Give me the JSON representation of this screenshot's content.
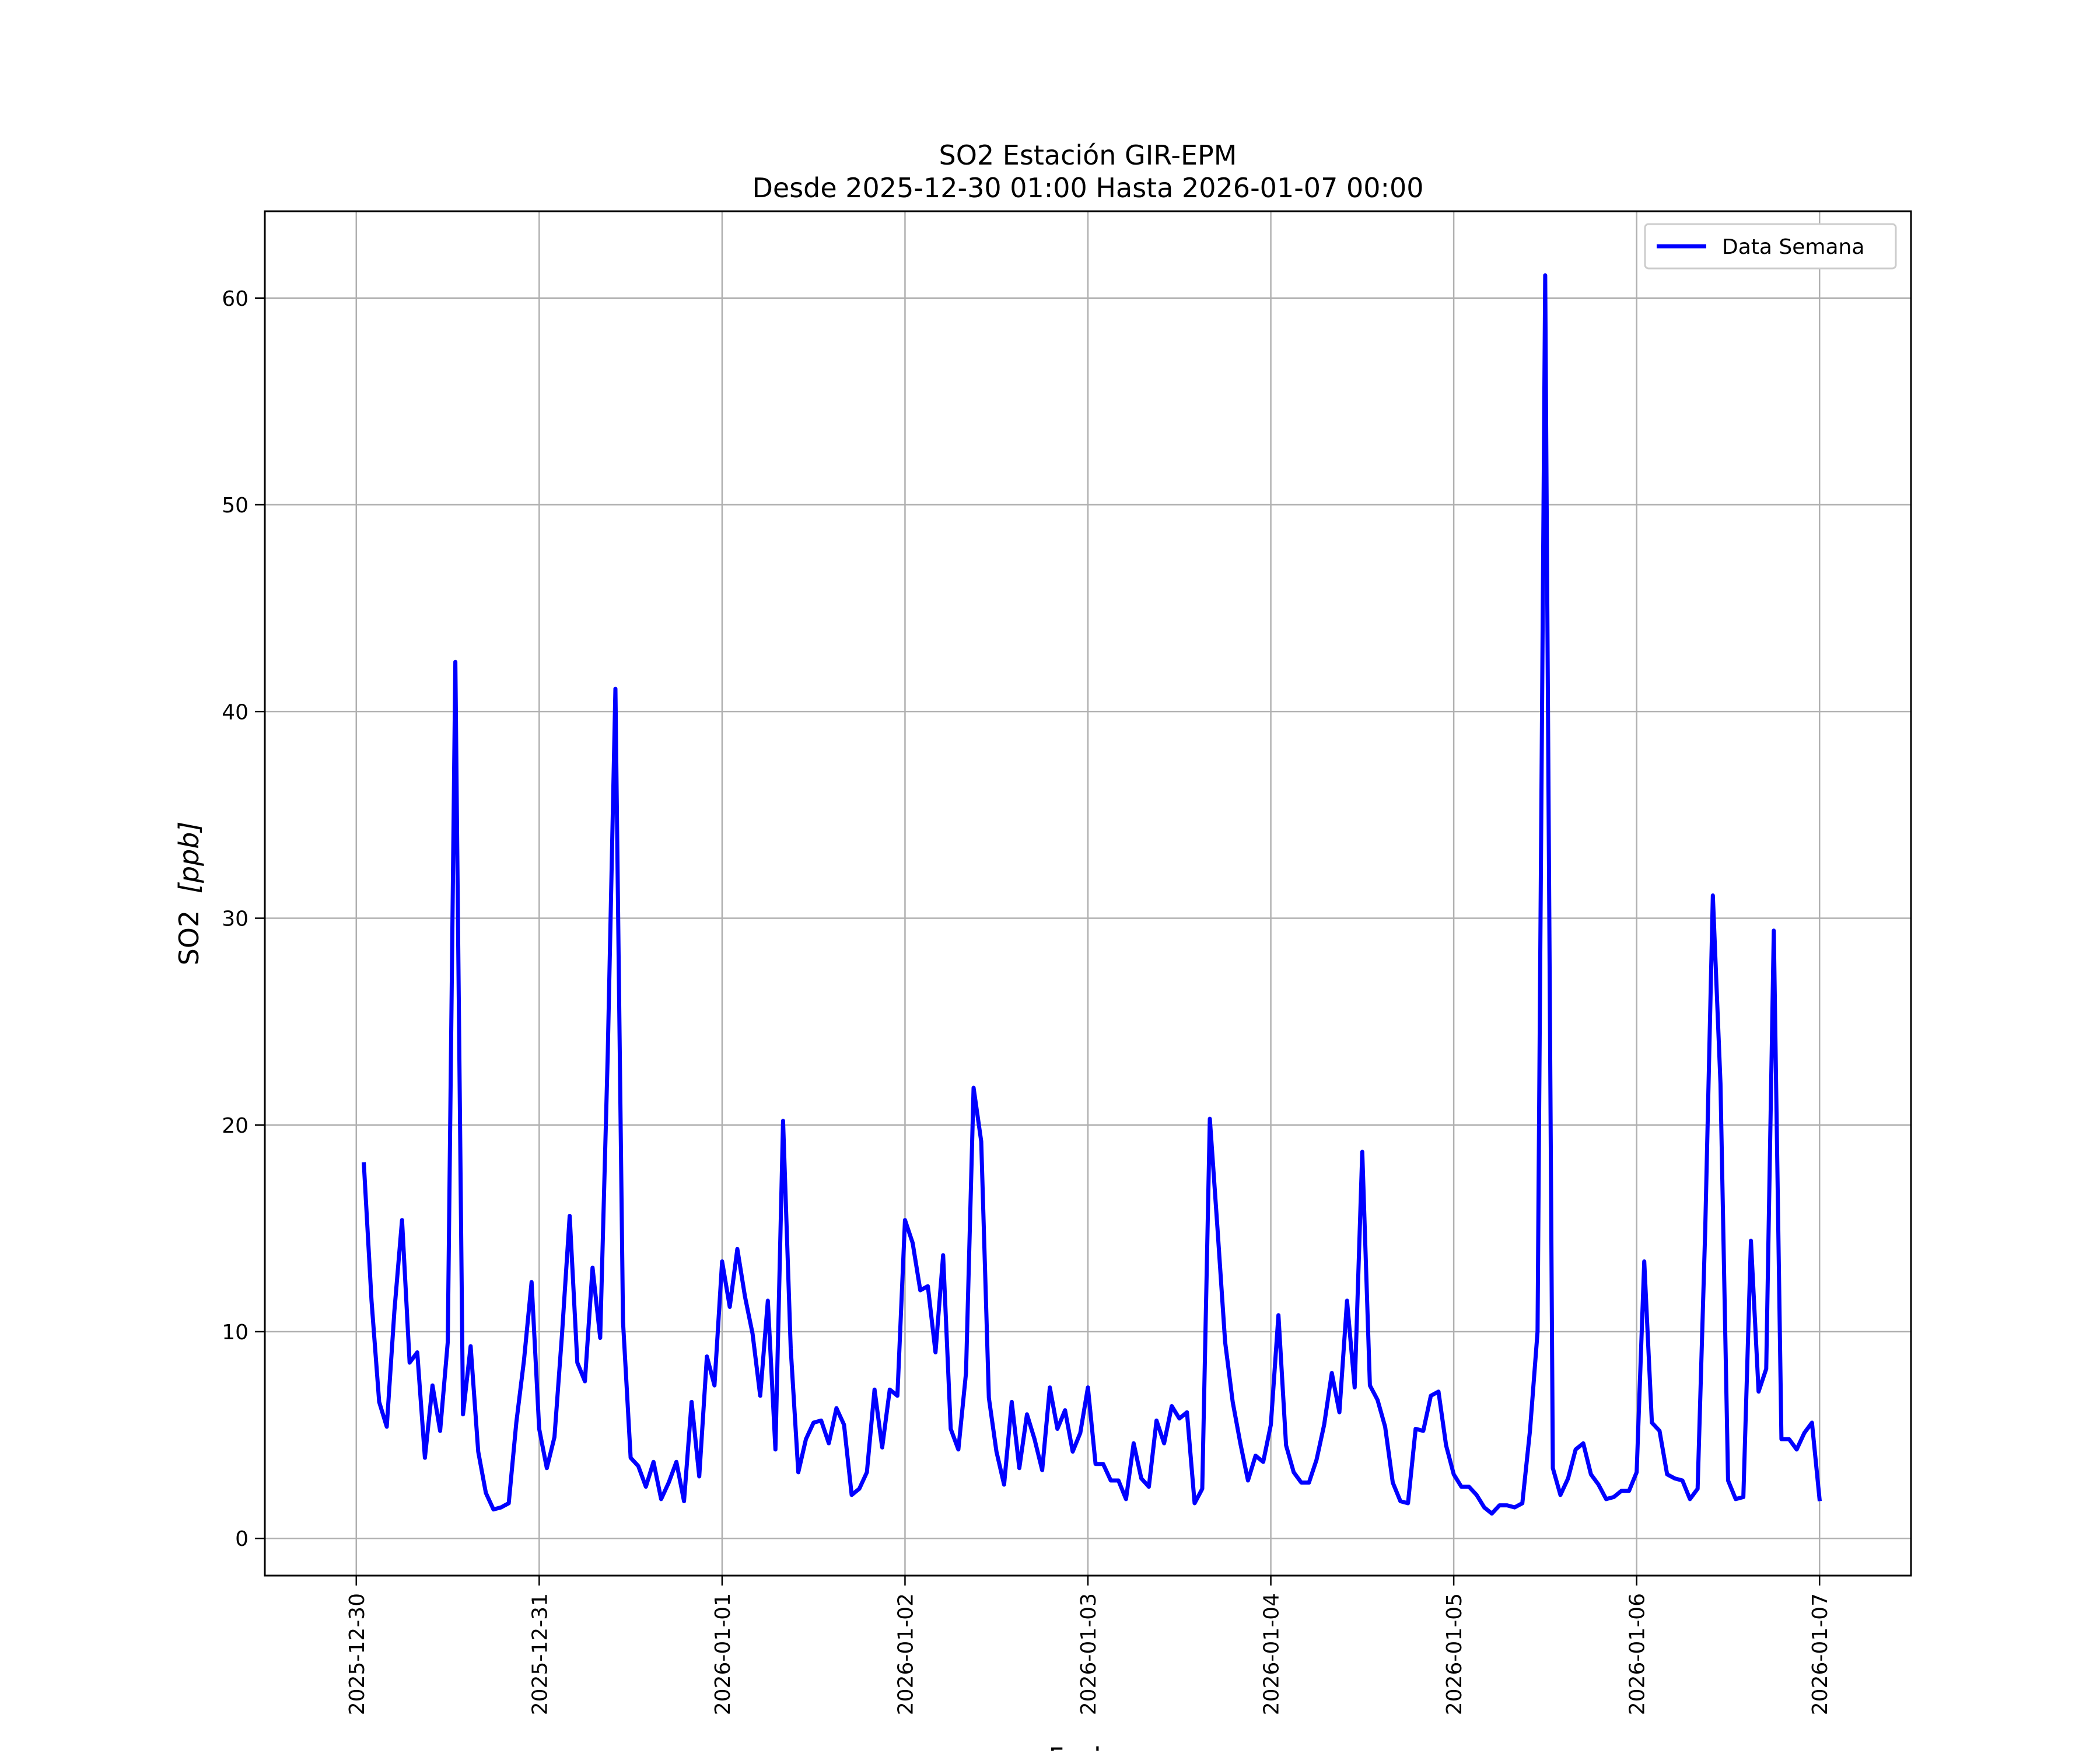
{
  "chart_data": {
    "type": "line",
    "title": "SO2 Estación GIR-EPM",
    "subtitle": "Desde 2025-12-30 01:00 Hasta 2026-01-07 00:00",
    "xlabel": "Fecha",
    "ylabel_text": "SO2",
    "ylabel_unit": "[ppb]",
    "x_start": "2025-12-30 01:00",
    "x_step_hours": 1,
    "xlim": [
      "2025-12-29 12:00",
      "2026-01-07 12:00"
    ],
    "ylim": [
      -1.8,
      64.2
    ],
    "x_ticks": [
      "2025-12-30",
      "2025-12-31",
      "2026-01-01",
      "2026-01-02",
      "2026-01-03",
      "2026-01-04",
      "2026-01-05",
      "2026-01-06",
      "2026-01-07"
    ],
    "y_ticks": [
      "0",
      "10",
      "20",
      "30",
      "40",
      "50",
      "60"
    ],
    "grid": true,
    "legend_position": "top-right",
    "series": [
      {
        "name": "Data Semana",
        "color": "#0000ff",
        "values": [
          18.1,
          11.5,
          6.6,
          5.4,
          11,
          15.4,
          8.5,
          9,
          3.9,
          7.4,
          5.2,
          9.5,
          42.4,
          6,
          9.3,
          4.2,
          2.2,
          1.4,
          1.5,
          1.7,
          5.6,
          8.6,
          12.4,
          5.3,
          3.4,
          4.9,
          9.9,
          15.6,
          8.5,
          7.6,
          13.1,
          9.7,
          23.5,
          41.1,
          10.5,
          3.9,
          3.5,
          2.5,
          3.7,
          1.9,
          2.7,
          3.7,
          1.8,
          6.6,
          3,
          8.8,
          7.4,
          13.4,
          11.2,
          14,
          11.7,
          9.9,
          6.9,
          11.5,
          4.3,
          20.2,
          9.2,
          3.2,
          4.8,
          5.6,
          5.7,
          4.6,
          6.3,
          5.5,
          2.1,
          2.4,
          3.2,
          7.2,
          4.4,
          7.2,
          6.9,
          15.4,
          14.3,
          12,
          12.2,
          9,
          13.7,
          5.3,
          4.3,
          8,
          21.8,
          19.2,
          6.8,
          4.2,
          2.6,
          6.6,
          3.4,
          6,
          4.8,
          3.3,
          7.3,
          5.3,
          6.2,
          4.2,
          5.1,
          7.3,
          3.6,
          3.6,
          2.8,
          2.8,
          1.9,
          4.6,
          2.9,
          2.5,
          5.7,
          4.6,
          6.4,
          5.8,
          6.1,
          1.7,
          2.4,
          20.3,
          15,
          9.5,
          6.6,
          4.6,
          2.8,
          4,
          3.7,
          5.5,
          10.8,
          4.5,
          3.2,
          2.7,
          2.7,
          3.8,
          5.5,
          8,
          6.1,
          11.5,
          7.3,
          18.7,
          7.4,
          6.7,
          5.4,
          2.7,
          1.8,
          1.7,
          5.3,
          5.2,
          6.9,
          7.1,
          4.5,
          3.1,
          2.5,
          2.5,
          2.1,
          1.5,
          1.2,
          1.6,
          1.6,
          1.5,
          1.7,
          5.2,
          10,
          61.1,
          3.4,
          2.1,
          2.9,
          4.3,
          4.6,
          3.1,
          2.6,
          1.9,
          2,
          2.3,
          2.3,
          3.2,
          13.4,
          5.6,
          5.2,
          3.1,
          2.9,
          2.8,
          1.9,
          2.4,
          15,
          31.1,
          22,
          2.8,
          1.9,
          2,
          14.4,
          7.1,
          8.2,
          29.4,
          4.8,
          4.8,
          4.3,
          5.1,
          5.6,
          1.9
        ]
      }
    ]
  }
}
